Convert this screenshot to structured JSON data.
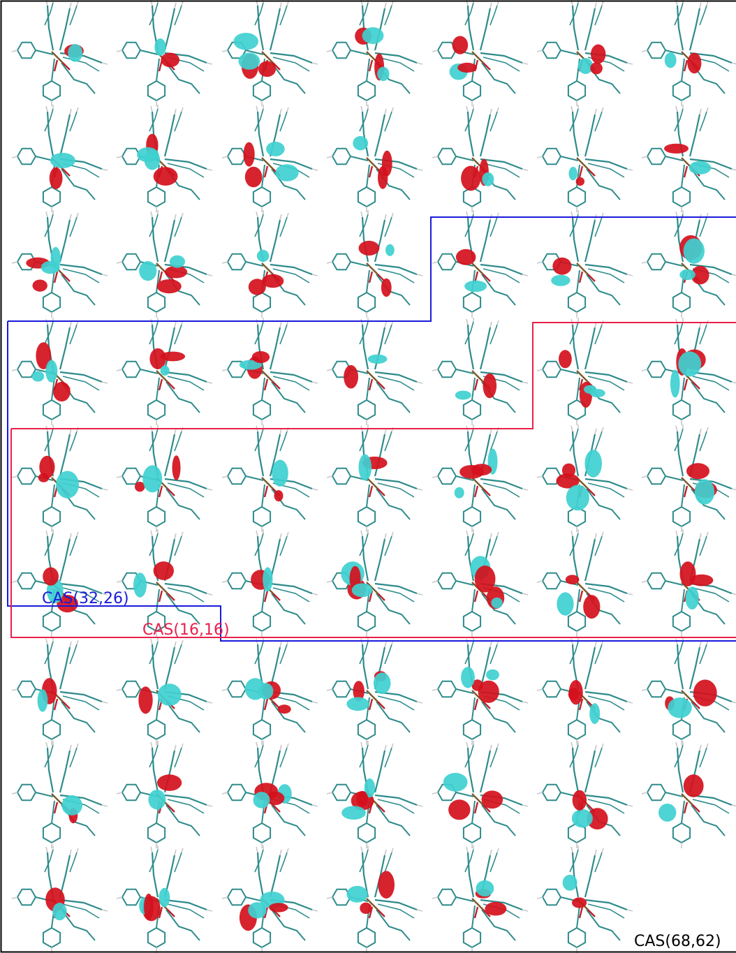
{
  "figure": {
    "outer_frame_color": "#000000",
    "atom_colors": {
      "carbon": "#2e8b8b",
      "hydrogen": "#c8c8c8",
      "oxygen": "#c0202a",
      "metal": "#7a5a2a"
    },
    "orbital_colors": {
      "positive": "#d4101c",
      "negative": "#3fd0d0"
    },
    "grid": {
      "rows": 9,
      "columns": 7,
      "orbital_count": 62
    }
  },
  "active_spaces": [
    {
      "id": "cas-16-16",
      "label": "CAS(16,16)",
      "color": "#e8204a"
    },
    {
      "id": "cas-32-26",
      "label": "CAS(32,26)",
      "color": "#1a1adc"
    },
    {
      "id": "cas-68-62",
      "label": "CAS(68,62)",
      "color": "#000000"
    }
  ]
}
